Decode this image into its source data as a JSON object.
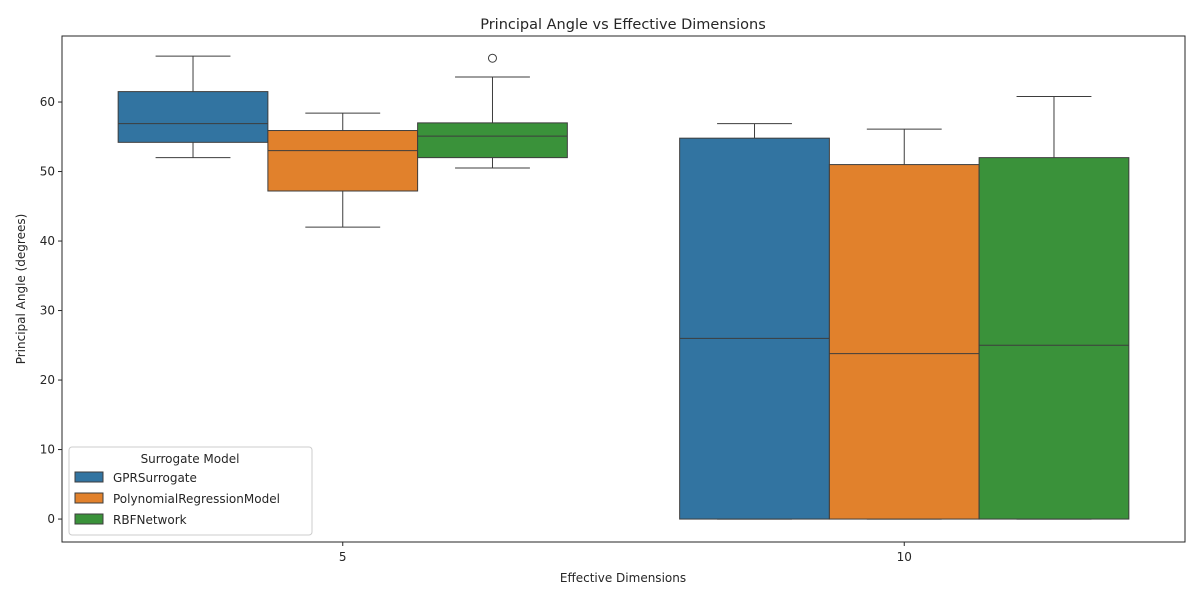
{
  "chart_data": {
    "type": "box",
    "title": "Principal Angle vs Effective Dimensions",
    "xlabel": "Effective Dimensions",
    "ylabel": "Principal Angle (degrees)",
    "categories": [
      "5",
      "10"
    ],
    "ylim": [
      -3.3,
      69.5
    ],
    "yticks": [
      0,
      10,
      20,
      30,
      40,
      50,
      60
    ],
    "grid": false,
    "legend": {
      "title": "Surrogate Model",
      "position": "lower-left"
    },
    "series": [
      {
        "name": "GPRSurrogate",
        "color": "#3274a1",
        "boxes": [
          {
            "whisker_low": 52.0,
            "q1": 54.2,
            "median": 56.9,
            "q3": 61.5,
            "whisker_high": 66.6,
            "outliers": []
          },
          {
            "whisker_low": 0.0,
            "q1": 0.0,
            "median": 26.0,
            "q3": 54.8,
            "whisker_high": 56.9,
            "outliers": []
          }
        ]
      },
      {
        "name": "PolynomialRegressionModel",
        "color": "#e1812c",
        "boxes": [
          {
            "whisker_low": 42.0,
            "q1": 47.2,
            "median": 53.0,
            "q3": 55.9,
            "whisker_high": 58.4,
            "outliers": []
          },
          {
            "whisker_low": 0.0,
            "q1": 0.0,
            "median": 23.8,
            "q3": 51.0,
            "whisker_high": 56.1,
            "outliers": []
          }
        ]
      },
      {
        "name": "RBFNetwork",
        "color": "#3a923a",
        "boxes": [
          {
            "whisker_low": 50.5,
            "q1": 52.0,
            "median": 55.1,
            "q3": 57.0,
            "whisker_high": 63.6,
            "outliers": [
              66.3
            ]
          },
          {
            "whisker_low": 0.0,
            "q1": 0.0,
            "median": 25.0,
            "q3": 52.0,
            "whisker_high": 60.8,
            "outliers": []
          }
        ]
      }
    ]
  }
}
